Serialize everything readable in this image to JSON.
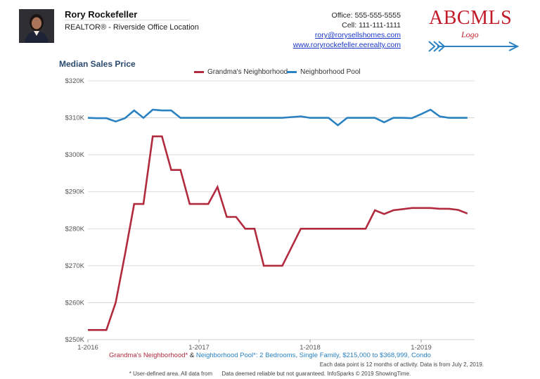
{
  "header": {
    "agent_name": "Rory Rockefeller",
    "agent_title": "REALTOR® - Riverside Office Location",
    "office": "Office: 555-555-5555",
    "cell": "Cell: 111-111-1111",
    "email": "rory@rorysellshomes.com",
    "website": "www.roryrockefeller.eerealty.com",
    "logo_main": "ABCMLS",
    "logo_sub": "Logo"
  },
  "colors": {
    "series_a": "#b12a3e",
    "series_b": "#2a82c2",
    "grid": "#d0d0d0",
    "axis_text": "#555555"
  },
  "chart_data": {
    "type": "line",
    "title": "Median Sales Price",
    "xlabel": "",
    "ylabel": "",
    "legend_position": "top-center",
    "grid": true,
    "x_ticks": [
      "1-2016",
      "1-2017",
      "1-2018",
      "1-2019"
    ],
    "y_ticks": [
      "$250K",
      "$260K",
      "$270K",
      "$280K",
      "$290K",
      "$300K",
      "$310K",
      "$320K"
    ],
    "xlim": [
      "2016-01",
      "2019-06"
    ],
    "ylim": [
      250000,
      320000
    ],
    "x": [
      "2016-01",
      "2016-02",
      "2016-03",
      "2016-04",
      "2016-05",
      "2016-06",
      "2016-07",
      "2016-08",
      "2016-09",
      "2016-10",
      "2016-11",
      "2016-12",
      "2017-01",
      "2017-02",
      "2017-03",
      "2017-04",
      "2017-05",
      "2017-06",
      "2017-07",
      "2017-08",
      "2017-09",
      "2017-10",
      "2017-11",
      "2017-12",
      "2018-01",
      "2018-02",
      "2018-03",
      "2018-04",
      "2018-05",
      "2018-06",
      "2018-07",
      "2018-08",
      "2018-09",
      "2018-10",
      "2018-11",
      "2018-12",
      "2019-01",
      "2019-02",
      "2019-03",
      "2019-04",
      "2019-05",
      "2019-06"
    ],
    "series": [
      {
        "name": "Grandma's Neighborhood",
        "values": [
          252600,
          252600,
          252600,
          260000,
          273000,
          286700,
          286700,
          305000,
          305000,
          295900,
          295900,
          286700,
          286700,
          286700,
          291300,
          283200,
          283200,
          280000,
          280000,
          270000,
          270000,
          270000,
          275000,
          280000,
          280000,
          280000,
          280000,
          280000,
          280000,
          280000,
          280000,
          285000,
          284000,
          285000,
          285300,
          285600,
          285600,
          285600,
          285400,
          285400,
          285100,
          284100
        ]
      },
      {
        "name": "Neighborhood Pool",
        "values": [
          310000,
          309900,
          309900,
          309000,
          309900,
          312000,
          310000,
          312200,
          312000,
          312000,
          310000,
          310000,
          310000,
          310000,
          310000,
          310000,
          310000,
          310000,
          310000,
          310000,
          310000,
          310000,
          310200,
          310400,
          310000,
          310000,
          310000,
          308000,
          310000,
          310000,
          310000,
          310000,
          308800,
          310000,
          310000,
          309900,
          311000,
          312200,
          310400,
          310000,
          310000,
          310000
        ]
      }
    ]
  },
  "footer": {
    "caption_a": "Grandma's Neighborhood*",
    "caption_amp": " & ",
    "caption_b": "Neighborhood Pool*: 2 Bedrooms, Single Family, $215,000 to $368,999, Condo",
    "note": "Each data point is 12 months of activity. Data is from July 2, 2019.",
    "disclaimer": "* User-defined area. All data from      Data deemed reliable but not guaranteed. InfoSparks © 2019 ShowingTime."
  }
}
